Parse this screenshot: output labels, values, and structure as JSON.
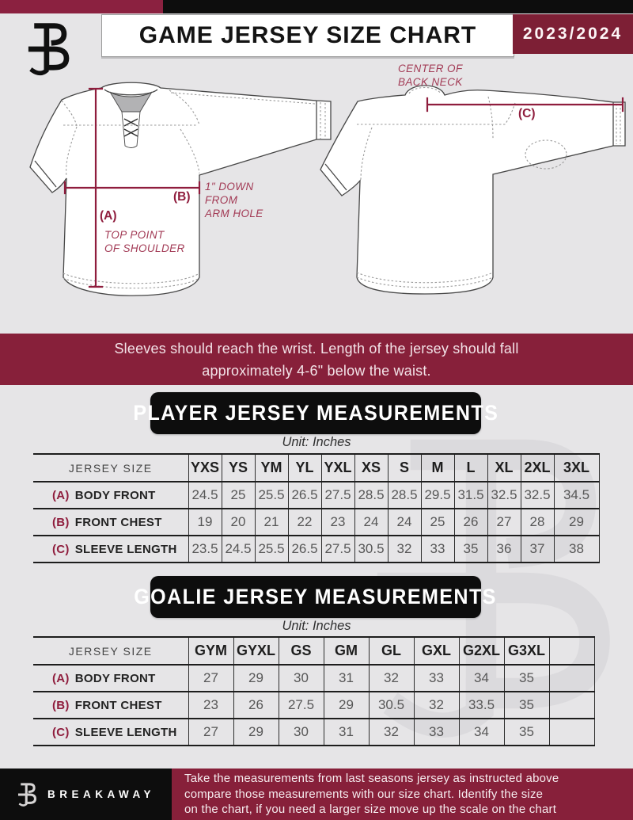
{
  "header": {
    "title": "GAME JERSEY SIZE CHART",
    "season": "2023/2024"
  },
  "diagram": {
    "front": {
      "a_label": "(A)",
      "a_caption_lines": [
        "TOP POINT",
        "OF SHOULDER"
      ],
      "b_label": "(B)",
      "b_caption_lines": [
        "1\" DOWN",
        "FROM",
        "ARM HOLE"
      ]
    },
    "back": {
      "c_label": "(C)",
      "c_caption_lines": [
        "CENTER OF",
        "BACK NECK"
      ]
    }
  },
  "notice_lines": [
    "Sleeves should reach the wrist. Length of the jersey should fall",
    "approximately 4-6\" below the waist."
  ],
  "player": {
    "title": "PLAYER JERSEY MEASUREMENTS",
    "unit": "Unit: Inches",
    "table": {
      "label_header": "JERSEY SIZE",
      "sizes": [
        "YXS",
        "YS",
        "YM",
        "YL",
        "YXL",
        "XS",
        "S",
        "M",
        "L",
        "XL",
        "2XL",
        "3XL"
      ],
      "rows": [
        {
          "prefix": "(A)",
          "label": "BODY FRONT",
          "values": [
            "24.5",
            "25",
            "25.5",
            "26.5",
            "27.5",
            "28.5",
            "28.5",
            "29.5",
            "31.5",
            "32.5",
            "32.5",
            "34.5"
          ]
        },
        {
          "prefix": "(B)",
          "label": "FRONT CHEST",
          "values": [
            "19",
            "20",
            "21",
            "22",
            "23",
            "24",
            "24",
            "25",
            "26",
            "27",
            "28",
            "29"
          ]
        },
        {
          "prefix": "(C)",
          "label": "SLEEVE LENGTH",
          "values": [
            "23.5",
            "24.5",
            "25.5",
            "26.5",
            "27.5",
            "30.5",
            "32",
            "33",
            "35",
            "36",
            "37",
            "38"
          ]
        }
      ],
      "trailing_blank": 0
    }
  },
  "goalie": {
    "title": "GOALIE JERSEY MEASUREMENTS",
    "unit": "Unit: Inches",
    "table": {
      "label_header": "JERSEY SIZE",
      "sizes": [
        "GYM",
        "GYXL",
        "GS",
        "GM",
        "GL",
        "GXL",
        "G2XL",
        "G3XL"
      ],
      "rows": [
        {
          "prefix": "(A)",
          "label": "BODY FRONT",
          "values": [
            "27",
            "29",
            "30",
            "31",
            "32",
            "33",
            "34",
            "35"
          ]
        },
        {
          "prefix": "(B)",
          "label": "FRONT CHEST",
          "values": [
            "23",
            "26",
            "27.5",
            "29",
            "30.5",
            "32",
            "33.5",
            "35"
          ]
        },
        {
          "prefix": "(C)",
          "label": "SLEEVE LENGTH",
          "values": [
            "27",
            "29",
            "30",
            "31",
            "32",
            "33",
            "34",
            "35"
          ]
        }
      ],
      "trailing_blank": 1
    }
  },
  "footer": {
    "brand": "BREAKAWAY",
    "text_lines": [
      "Take the measurements from last seasons jersey as instructed above",
      "compare those measurements  with our size chart. Identify the size",
      "on the chart, if you need a larger size move up the scale on the chart"
    ]
  },
  "colors": {
    "maroon_banner": "#87203a",
    "maroon_strip": "#8b2140",
    "season_box": "#7d1f35",
    "measure_line": "#8f1d3d",
    "annotation_text": "#a23a55",
    "banner_black": "#0d0d0d",
    "background": "#e6e5e7",
    "watermark": "#dbdadd"
  }
}
